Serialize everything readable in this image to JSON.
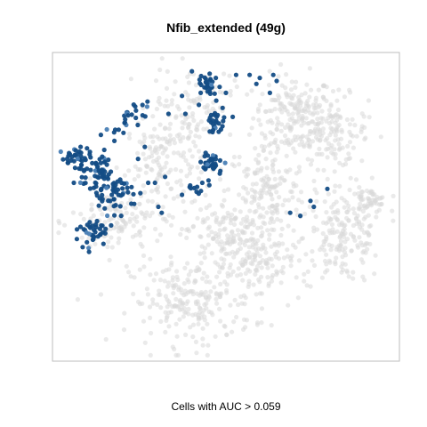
{
  "chart_data": {
    "type": "scatter",
    "title": "Nfib_extended (49g)",
    "xlabel": "",
    "ylabel": "",
    "caption": "Cells with AUC > 0.059",
    "axes_visible": false,
    "grid": false,
    "legend": "none",
    "colors": {
      "background_cells": "#d9d9d9",
      "selected_cells": "#134c85",
      "selected_highlight": "#4a7fb5",
      "frame": "#bdbdbd"
    },
    "xlim": [
      0,
      100
    ],
    "ylim": [
      0,
      100
    ],
    "selected_clusters": [
      {
        "x": 5,
        "y": 66,
        "sx": 1.5,
        "sy": 1.5,
        "n": 25
      },
      {
        "x": 12,
        "y": 62,
        "sx": 2.5,
        "sy": 3,
        "n": 55
      },
      {
        "x": 16,
        "y": 55,
        "sx": 2.5,
        "sy": 3,
        "n": 45
      },
      {
        "x": 11,
        "y": 42,
        "sx": 2,
        "sy": 2.5,
        "n": 35
      },
      {
        "x": 21,
        "y": 80,
        "sx": 1.5,
        "sy": 1.5,
        "n": 10
      },
      {
        "x": 25,
        "y": 83,
        "sx": 1.5,
        "sy": 1.5,
        "n": 8
      },
      {
        "x": 18,
        "y": 76,
        "sx": 1.5,
        "sy": 1.5,
        "n": 6
      },
      {
        "x": 22,
        "y": 57,
        "sx": 1.5,
        "sy": 1.5,
        "n": 6
      },
      {
        "x": 45,
        "y": 91,
        "sx": 1.5,
        "sy": 2,
        "n": 30
      },
      {
        "x": 47,
        "y": 79,
        "sx": 1.5,
        "sy": 2.5,
        "n": 25
      },
      {
        "x": 46,
        "y": 64,
        "sx": 1.5,
        "sy": 2.5,
        "n": 35
      },
      {
        "x": 41,
        "y": 56,
        "sx": 1.2,
        "sy": 1.2,
        "n": 8
      }
    ],
    "selected_scatter": [
      [
        9.5,
        35
      ],
      [
        24,
        66
      ],
      [
        31,
        48
      ],
      [
        33,
        81
      ],
      [
        37,
        87
      ],
      [
        53,
        94
      ],
      [
        57,
        94
      ],
      [
        59,
        91
      ],
      [
        60,
        93
      ],
      [
        64,
        94
      ],
      [
        65,
        92
      ],
      [
        63,
        88
      ],
      [
        69,
        48
      ],
      [
        76,
        50
      ],
      [
        75,
        52
      ],
      [
        72,
        47
      ],
      [
        80,
        56
      ],
      [
        14,
        69
      ],
      [
        7,
        70
      ],
      [
        8,
        62
      ],
      [
        19,
        47
      ],
      [
        27,
        58
      ],
      [
        29,
        58
      ],
      [
        30,
        50
      ],
      [
        26,
        70
      ],
      [
        3,
        66
      ],
      [
        5,
        58
      ],
      [
        9,
        44
      ],
      [
        11,
        40
      ],
      [
        20,
        78
      ],
      [
        17,
        72
      ],
      [
        13,
        74
      ],
      [
        37,
        54
      ],
      [
        43,
        58
      ],
      [
        44,
        68
      ],
      [
        49,
        83
      ],
      [
        50,
        88
      ],
      [
        42,
        84
      ],
      [
        47,
        93
      ],
      [
        52,
        80
      ],
      [
        38,
        81
      ],
      [
        32,
        60
      ]
    ],
    "background_clusters": [
      {
        "x": 70,
        "y": 80,
        "sx": 6,
        "sy": 7,
        "n": 200
      },
      {
        "x": 82,
        "y": 75,
        "sx": 5,
        "sy": 6,
        "n": 120
      },
      {
        "x": 85,
        "y": 40,
        "sx": 6,
        "sy": 8,
        "n": 180
      },
      {
        "x": 92,
        "y": 52,
        "sx": 3,
        "sy": 2,
        "n": 50
      },
      {
        "x": 62,
        "y": 55,
        "sx": 6,
        "sy": 8,
        "n": 160
      },
      {
        "x": 50,
        "y": 40,
        "sx": 6,
        "sy": 6,
        "n": 160
      },
      {
        "x": 40,
        "y": 18,
        "sx": 9,
        "sy": 7,
        "n": 220
      },
      {
        "x": 32,
        "y": 65,
        "sx": 6,
        "sy": 8,
        "n": 150
      },
      {
        "x": 18,
        "y": 45,
        "sx": 7,
        "sy": 6,
        "n": 130
      },
      {
        "x": 40,
        "y": 85,
        "sx": 6,
        "sy": 6,
        "n": 90
      },
      {
        "x": 60,
        "y": 30,
        "sx": 5,
        "sy": 6,
        "n": 100
      }
    ]
  }
}
